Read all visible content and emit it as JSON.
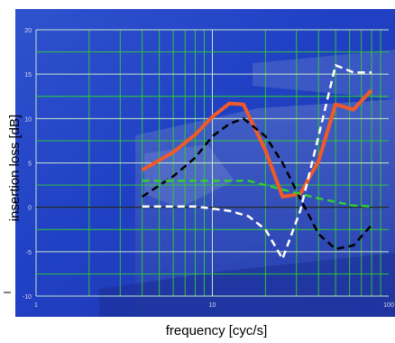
{
  "chart_data": {
    "type": "line",
    "title": "",
    "xlabel": "frequency [cyc/s]",
    "ylabel": "insertion loss [dB]",
    "x_scale": "log",
    "xlim": [
      1,
      100
    ],
    "ylim": [
      -10,
      20
    ],
    "x_ticks": [
      {
        "value": 1,
        "label": "1"
      },
      {
        "value": 10,
        "label": "10"
      },
      {
        "value": 100,
        "label": "100"
      }
    ],
    "y_ticks": [
      {
        "value": -10,
        "label": "-10"
      },
      {
        "value": -5,
        "label": "-5"
      },
      {
        "value": 0,
        "label": "0"
      },
      {
        "value": 5,
        "label": "5"
      },
      {
        "value": 10,
        "label": "10"
      },
      {
        "value": 15,
        "label": "15"
      },
      {
        "value": 20,
        "label": "20"
      }
    ],
    "grid": true,
    "legend": "none",
    "series": [
      {
        "style": "solid",
        "color": "#f05a28",
        "x": [
          4,
          6,
          8,
          10,
          12.5,
          15,
          20,
          25,
          31.5,
          40,
          50,
          63,
          80
        ],
        "y": [
          4.2,
          6.2,
          8.2,
          10.2,
          11.7,
          11.6,
          6.4,
          1.2,
          1.5,
          5.2,
          11.6,
          11.0,
          13.2
        ]
      },
      {
        "style": "dashed",
        "color": "#000000",
        "x": [
          4,
          6,
          8,
          10,
          12.5,
          15,
          20,
          25,
          31.5,
          40,
          50,
          63,
          80
        ],
        "y": [
          1.2,
          3.5,
          5.6,
          8.0,
          9.4,
          10.0,
          8.0,
          5.0,
          1.0,
          -3.0,
          -4.7,
          -4.3,
          -2.0
        ]
      },
      {
        "style": "dashed",
        "color": "#30d030",
        "x": [
          4,
          8,
          16,
          25,
          40,
          63,
          80
        ],
        "y": [
          3.0,
          3.0,
          3.0,
          2.0,
          1.0,
          0.2,
          0.1
        ]
      },
      {
        "style": "dashed",
        "color": "#ffffff",
        "x": [
          4,
          8,
          12.5,
          16,
          20,
          25,
          31.5,
          40,
          50,
          63,
          80
        ],
        "y": [
          0.1,
          0.1,
          -0.4,
          -1.0,
          -2.5,
          -5.8,
          -0.4,
          8.0,
          16.0,
          15.2,
          15.2
        ]
      }
    ]
  }
}
